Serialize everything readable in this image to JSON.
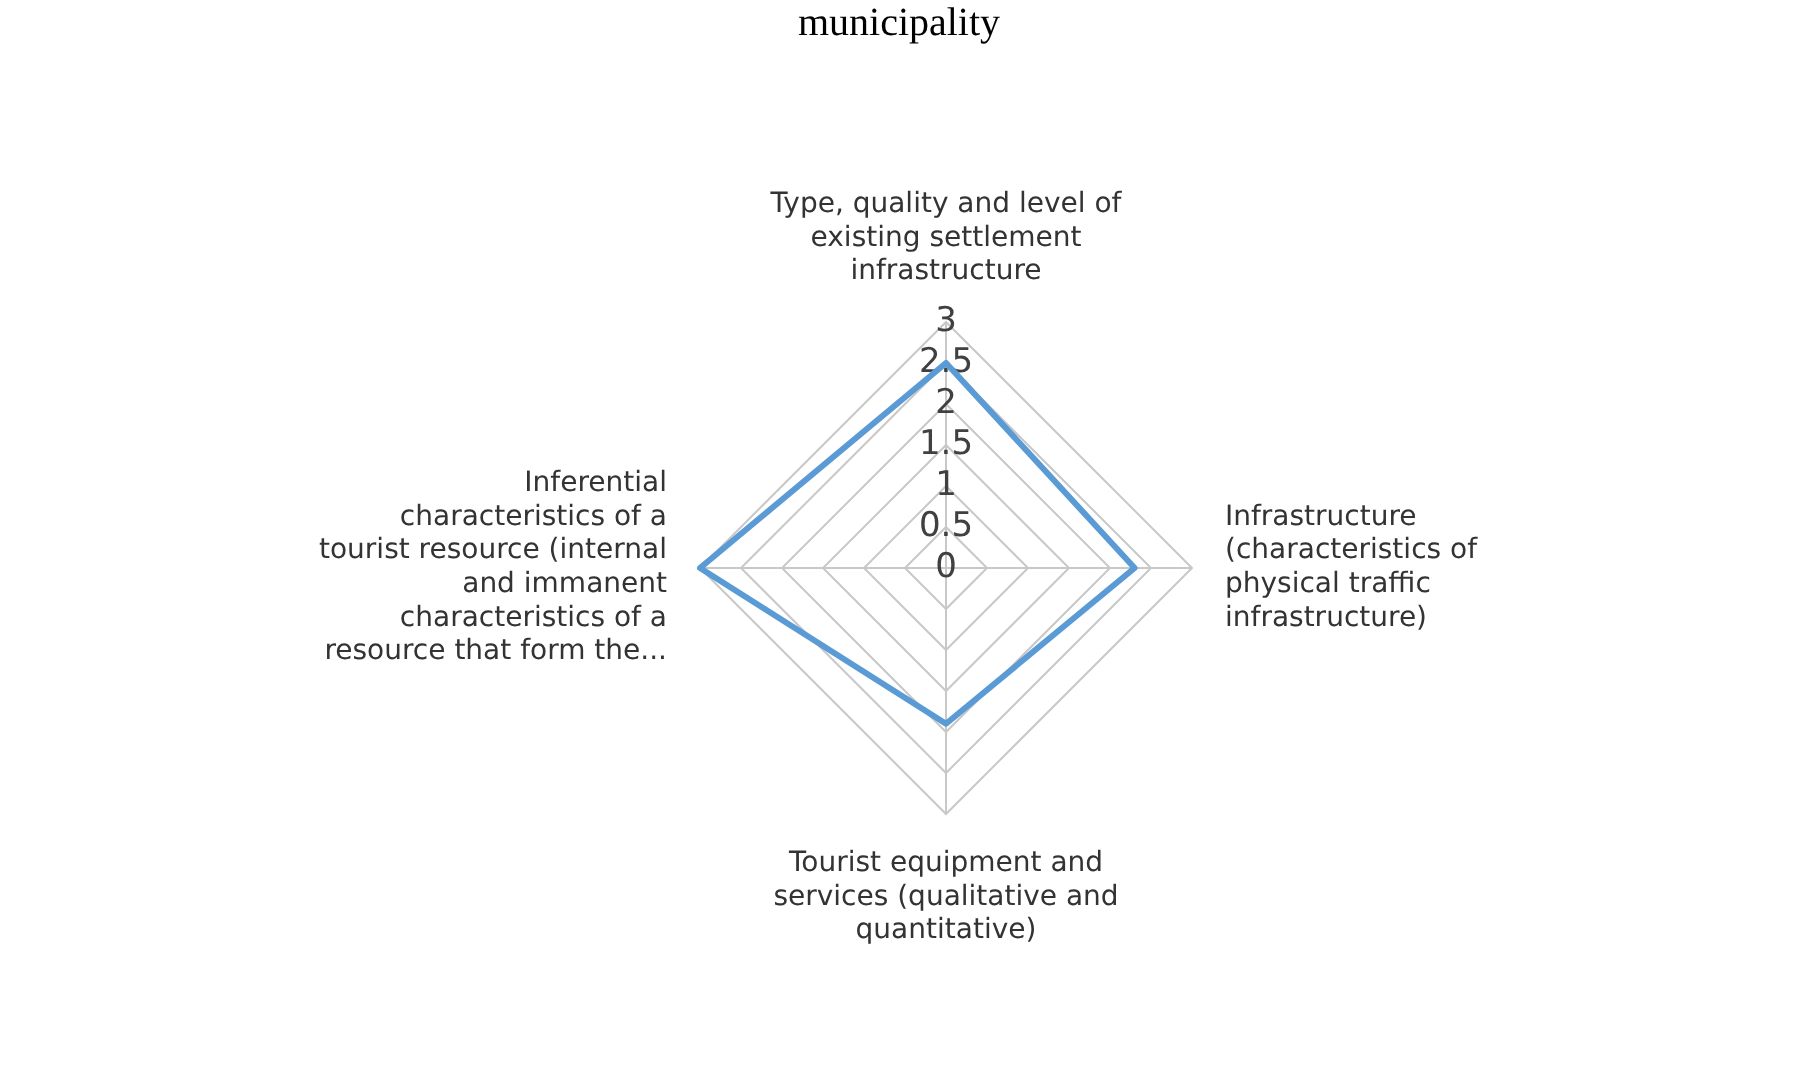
{
  "chart_data": {
    "type": "radar",
    "title": "municipality",
    "categories": [
      "Type, quality and level of existing settlement infrastructure",
      "Infrastructure (characteristics of physical traffic infrastructure)",
      "Tourist equipment and services (qualitative and quantitative)",
      "Inferential characteristics of a tourist resource (internal and immanent characteristics of a resource that form the..."
    ],
    "series": [
      {
        "color": "#5b9bd5",
        "values": [
          2.5,
          2.3,
          1.9,
          3
        ]
      }
    ],
    "ylim": [
      0,
      3
    ],
    "yticks": [
      0,
      0.5,
      1,
      1.5,
      2,
      2.5,
      3
    ],
    "grid": true,
    "legend": false,
    "marker": "none"
  }
}
